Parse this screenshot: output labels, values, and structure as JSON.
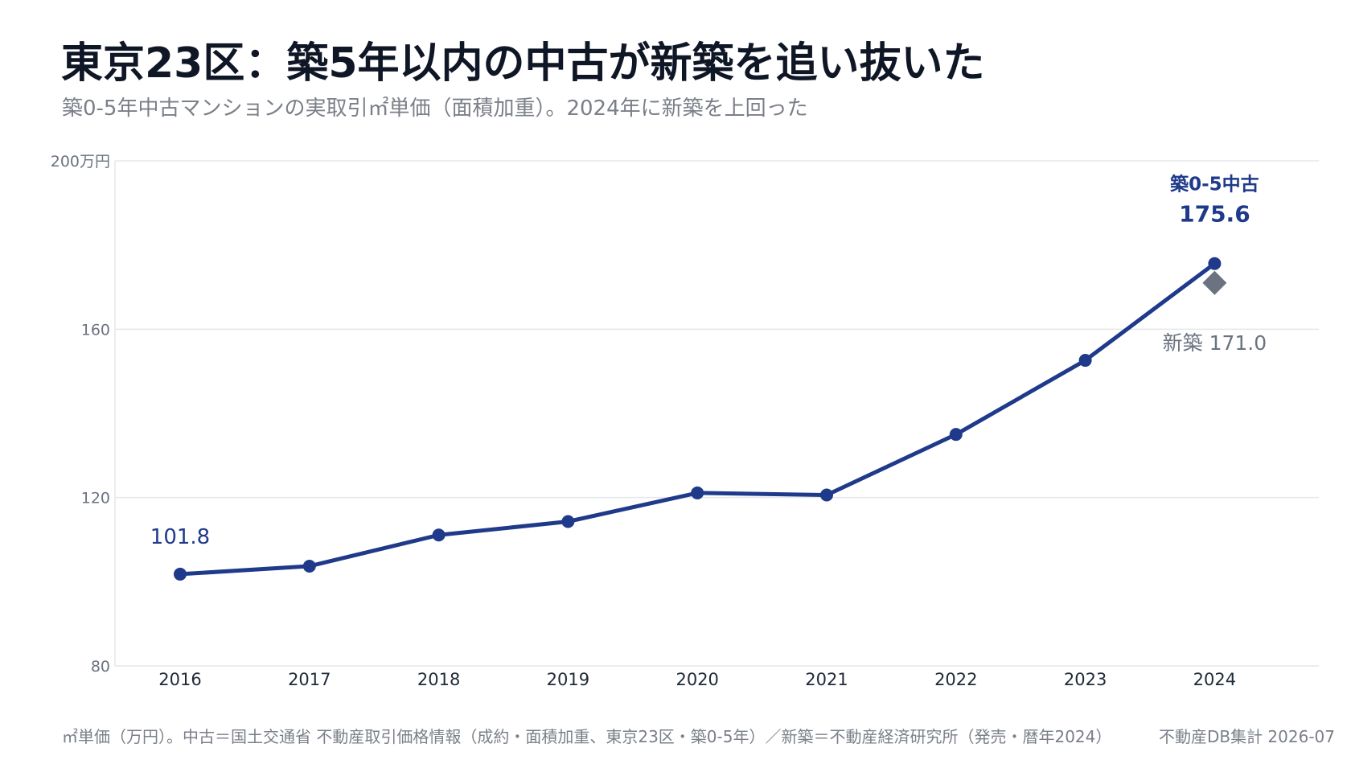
{
  "title": "東京23区：築5年以内の中古が新築を追い抜いた",
  "subtitle": "築0-5年中古マンションの実取引㎡単価（面積加重）。2024年に新築を上回った",
  "footer": "㎡単価（万円）。中古＝国土交通省 不動産取引価格情報（成約・面積加重、東京23区・築0-5年）／新築＝不動産経済研究所（発売・暦年2024）",
  "credit": "不動産DB集計 2026-07",
  "colors": {
    "series_used": "#1f3a8a",
    "series_new": "#6b7280",
    "grid": "#e5e7eb",
    "axis_text": "#6b7280",
    "year_text": "#1f2937"
  },
  "chart_data": {
    "type": "line",
    "x": [
      "2016",
      "2017",
      "2018",
      "2019",
      "2020",
      "2021",
      "2022",
      "2023",
      "2024"
    ],
    "y_ticks": [
      80,
      120,
      160,
      200
    ],
    "y_tick_labels": [
      "80",
      "120",
      "160",
      "200万円"
    ],
    "ylim": [
      80,
      200
    ],
    "grid": true,
    "series": [
      {
        "name": "築0-5中古",
        "marker": "circle",
        "values": [
          101.8,
          103.7,
          111.1,
          114.3,
          121.1,
          120.6,
          135.0,
          152.6,
          175.6
        ]
      },
      {
        "name": "新築",
        "marker": "diamond",
        "x": [
          "2024"
        ],
        "values": [
          171.0
        ]
      }
    ],
    "annotations": [
      {
        "text": "101.8",
        "x": "2016",
        "series": "築0-5中古"
      },
      {
        "text": "築0-5中古",
        "x": "2024",
        "series": "築0-5中古"
      },
      {
        "text": "175.6",
        "x": "2024",
        "series": "築0-5中古"
      },
      {
        "text": "新築 171.0",
        "x": "2024",
        "series": "新築"
      }
    ]
  }
}
